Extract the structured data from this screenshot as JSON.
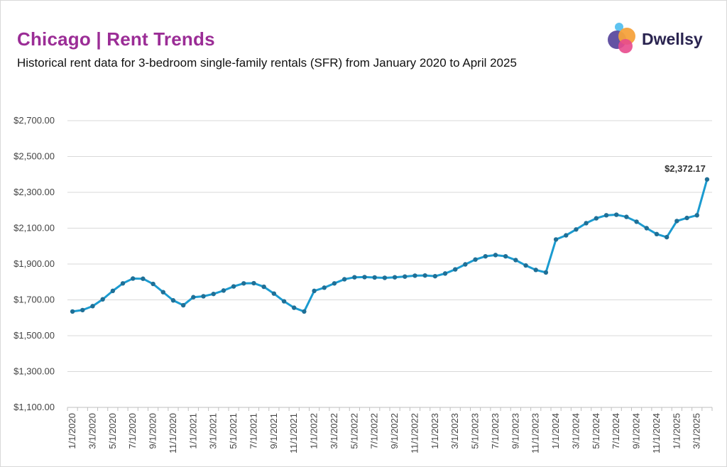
{
  "header": {
    "title": "Chicago | Rent Trends",
    "subtitle": "Historical rent data for 3-bedroom single-family rentals (SFR) from January 2020 to April 2025"
  },
  "brand": {
    "name": "Dwellsy",
    "colors": {
      "title": "#9b2d96",
      "logo_text": "#2a2450",
      "line": "#1b9bd0",
      "marker": "#1f6f96"
    }
  },
  "chart_data": {
    "type": "line",
    "title": "Chicago | Rent Trends",
    "subtitle": "Historical rent data for 3-bedroom single-family rentals (SFR) from January 2020 to April 2025",
    "xlabel": "",
    "ylabel": "",
    "ylim": [
      1100,
      2700
    ],
    "yticks": [
      "$1,100.00",
      "$1,300.00",
      "$1,500.00",
      "$1,700.00",
      "$1,900.00",
      "$2,100.00",
      "$2,300.00",
      "$2,500.00",
      "$2,700.00"
    ],
    "xtick_labels": [
      "1/1/2020",
      "3/1/2020",
      "5/1/2020",
      "7/1/2020",
      "9/1/2020",
      "11/1/2020",
      "1/1/2021",
      "3/1/2021",
      "5/1/2021",
      "7/1/2021",
      "9/1/2021",
      "11/1/2021",
      "1/1/2022",
      "3/1/2022",
      "5/1/2022",
      "7/1/2022",
      "9/1/2022",
      "11/1/2022",
      "1/1/2023",
      "3/1/2023",
      "5/1/2023",
      "7/1/2023",
      "9/1/2023",
      "11/1/2023",
      "1/1/2024",
      "3/1/2024",
      "5/1/2024",
      "7/1/2024",
      "9/1/2024",
      "11/1/2024",
      "1/1/2025",
      "3/1/2025"
    ],
    "grid": "horizontal",
    "annotation": {
      "text": "$2,372.17",
      "x": "4/1/2025",
      "y": 2372.17
    },
    "series": [
      {
        "x": [
          "2020-01",
          "2020-02",
          "2020-03",
          "2020-04",
          "2020-05",
          "2020-06",
          "2020-07",
          "2020-08",
          "2020-09",
          "2020-10",
          "2020-11",
          "2020-12",
          "2021-01",
          "2021-02",
          "2021-03",
          "2021-04",
          "2021-05",
          "2021-06",
          "2021-07",
          "2021-08",
          "2021-09",
          "2021-10",
          "2021-11",
          "2021-12",
          "2022-01",
          "2022-02",
          "2022-03",
          "2022-04",
          "2022-05",
          "2022-06",
          "2022-07",
          "2022-08",
          "2022-09",
          "2022-10",
          "2022-11",
          "2022-12",
          "2023-01",
          "2023-02",
          "2023-03",
          "2023-04",
          "2023-05",
          "2023-06",
          "2023-07",
          "2023-08",
          "2023-09",
          "2023-10",
          "2023-11",
          "2023-12",
          "2024-01",
          "2024-02",
          "2024-03",
          "2024-04",
          "2024-05",
          "2024-06",
          "2024-07",
          "2024-08",
          "2024-09",
          "2024-10",
          "2024-11",
          "2024-12",
          "2025-01",
          "2025-02",
          "2025-03",
          "2025-04"
        ],
        "values": [
          1635,
          1643,
          1665,
          1703,
          1750,
          1792,
          1819,
          1818,
          1789,
          1743,
          1697,
          1670,
          1715,
          1720,
          1733,
          1752,
          1775,
          1792,
          1793,
          1773,
          1735,
          1692,
          1656,
          1635,
          1750,
          1768,
          1792,
          1815,
          1826,
          1827,
          1825,
          1823,
          1826,
          1830,
          1835,
          1836,
          1832,
          1847,
          1870,
          1898,
          1925,
          1943,
          1950,
          1943,
          1922,
          1892,
          1867,
          1853,
          2037,
          2060,
          2093,
          2128,
          2155,
          2172,
          2175,
          2163,
          2136,
          2100,
          2067,
          2050,
          2140,
          2157,
          2172,
          2372.17
        ]
      }
    ]
  }
}
